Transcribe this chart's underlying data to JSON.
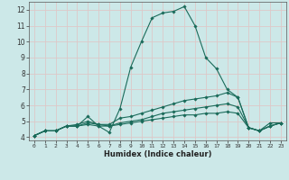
{
  "xlabel": "Humidex (Indice chaleur)",
  "ylabel": "",
  "bg_color": "#cce8e8",
  "grid_color": "#b8d8d8",
  "line_color": "#1a6b5a",
  "xlim": [
    -0.5,
    23.5
  ],
  "ylim": [
    3.8,
    12.5
  ],
  "yticks": [
    4,
    5,
    6,
    7,
    8,
    9,
    10,
    11,
    12
  ],
  "xticks": [
    0,
    1,
    2,
    3,
    4,
    5,
    6,
    7,
    8,
    9,
    10,
    11,
    12,
    13,
    14,
    15,
    16,
    17,
    18,
    19,
    20,
    21,
    22,
    23
  ],
  "series": [
    [
      4.1,
      4.4,
      4.4,
      4.7,
      4.7,
      5.3,
      4.7,
      4.3,
      5.8,
      8.4,
      10.0,
      11.5,
      11.8,
      11.9,
      12.2,
      11.0,
      9.0,
      8.3,
      7.0,
      6.5,
      4.6,
      4.4,
      4.9,
      4.9
    ],
    [
      4.1,
      4.4,
      4.4,
      4.7,
      4.8,
      5.0,
      4.8,
      4.8,
      5.2,
      5.3,
      5.5,
      5.7,
      5.9,
      6.1,
      6.3,
      6.4,
      6.5,
      6.6,
      6.8,
      6.5,
      4.6,
      4.4,
      4.7,
      4.9
    ],
    [
      4.1,
      4.4,
      4.4,
      4.7,
      4.7,
      4.9,
      4.8,
      4.7,
      4.9,
      5.0,
      5.1,
      5.3,
      5.5,
      5.6,
      5.7,
      5.8,
      5.9,
      6.0,
      6.1,
      5.9,
      4.6,
      4.4,
      4.7,
      4.9
    ],
    [
      4.1,
      4.4,
      4.4,
      4.7,
      4.7,
      4.8,
      4.7,
      4.7,
      4.8,
      4.9,
      5.0,
      5.1,
      5.2,
      5.3,
      5.4,
      5.4,
      5.5,
      5.5,
      5.6,
      5.5,
      4.6,
      4.4,
      4.7,
      4.9
    ]
  ]
}
